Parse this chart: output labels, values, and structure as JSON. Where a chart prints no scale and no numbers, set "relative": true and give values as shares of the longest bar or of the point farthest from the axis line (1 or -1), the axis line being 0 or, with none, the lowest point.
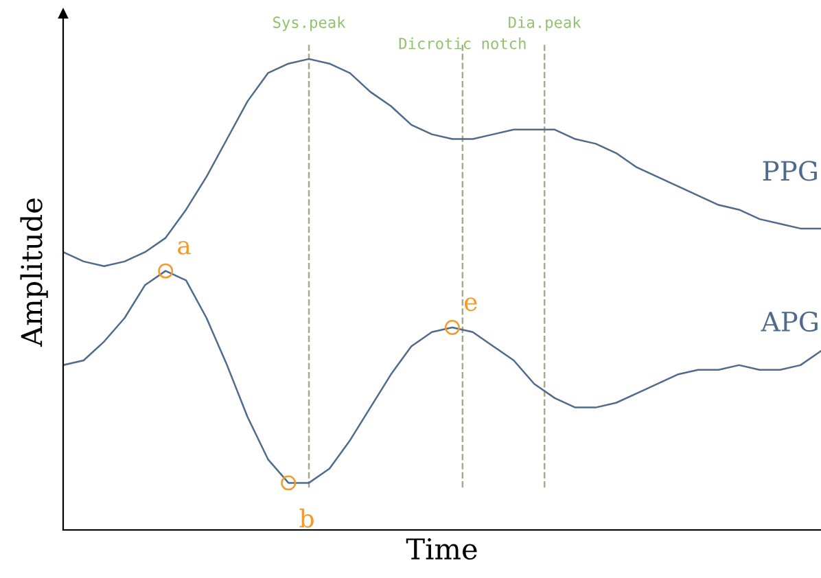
{
  "chart_data": {
    "type": "line",
    "relative": true,
    "xlabel": "Time",
    "ylabel": "Amplitude",
    "categories": [
      null,
      null,
      null,
      null,
      null,
      null,
      null,
      null,
      null,
      null,
      null,
      null,
      null,
      null,
      null,
      null,
      null,
      null,
      null,
      null,
      null,
      null,
      null,
      null,
      null,
      null,
      null,
      null,
      null,
      null,
      null,
      null,
      null,
      null,
      null,
      null,
      null,
      null
    ],
    "series": [
      {
        "name": "PPG",
        "color": "#4f6a8a",
        "values": [
          0.59,
          0.57,
          0.56,
          0.57,
          0.59,
          0.62,
          0.68,
          0.75,
          0.83,
          0.91,
          0.97,
          0.99,
          1.0,
          0.99,
          0.97,
          0.93,
          0.9,
          0.86,
          0.84,
          0.83,
          0.83,
          0.84,
          0.85,
          0.85,
          0.85,
          0.83,
          0.82,
          0.8,
          0.77,
          0.75,
          0.73,
          0.71,
          0.69,
          0.68,
          0.66,
          0.65,
          0.64,
          0.64
        ]
      },
      {
        "name": "APG",
        "color": "#4f6a8a",
        "values": [
          0.35,
          0.36,
          0.4,
          0.45,
          0.52,
          0.55,
          0.53,
          0.45,
          0.35,
          0.24,
          0.15,
          0.1,
          0.1,
          0.13,
          0.19,
          0.26,
          0.33,
          0.39,
          0.42,
          0.43,
          0.42,
          0.39,
          0.36,
          0.31,
          0.28,
          0.26,
          0.26,
          0.27,
          0.29,
          0.31,
          0.33,
          0.34,
          0.34,
          0.35,
          0.34,
          0.34,
          0.35,
          0.38
        ]
      }
    ],
    "annotations": [
      "a",
      "b",
      "e",
      "Sys.peak",
      "Dicrotic notch",
      "Dia.peak"
    ],
    "legend": false
  }
}
